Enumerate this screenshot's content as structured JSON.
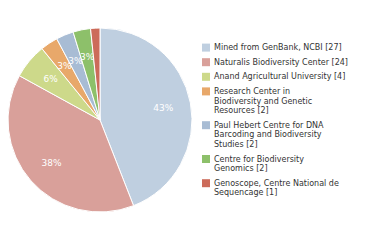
{
  "chart_data": {
    "type": "pie",
    "categories": [
      "Mined from GenBank, NCBI [27]",
      "Naturalis Biodiversity Center [24]",
      "Anand Agricultural University [4]",
      "Research Center in\nBiodiversity and Genetic\nResources [2]",
      "Paul Hebert Centre for DNA\nBarcoding and Biodiversity\nStudies [2]",
      "Centre for Biodiversity\nGenomics [2]",
      "Genoscope, Centre National de\nSequencage [1]"
    ],
    "values": [
      43,
      38,
      6,
      3,
      3,
      3,
      1.6
    ],
    "value_labels": [
      "43%",
      "38%",
      "6%",
      "3%",
      "3%",
      "3%",
      null
    ],
    "colors": [
      "#bfcfe0",
      "#d9a09a",
      "#cdd98a",
      "#e8a86a",
      "#a8bcd4",
      "#8dc06a",
      "#cc6b5a"
    ],
    "data_labels": true,
    "legend": "right"
  }
}
